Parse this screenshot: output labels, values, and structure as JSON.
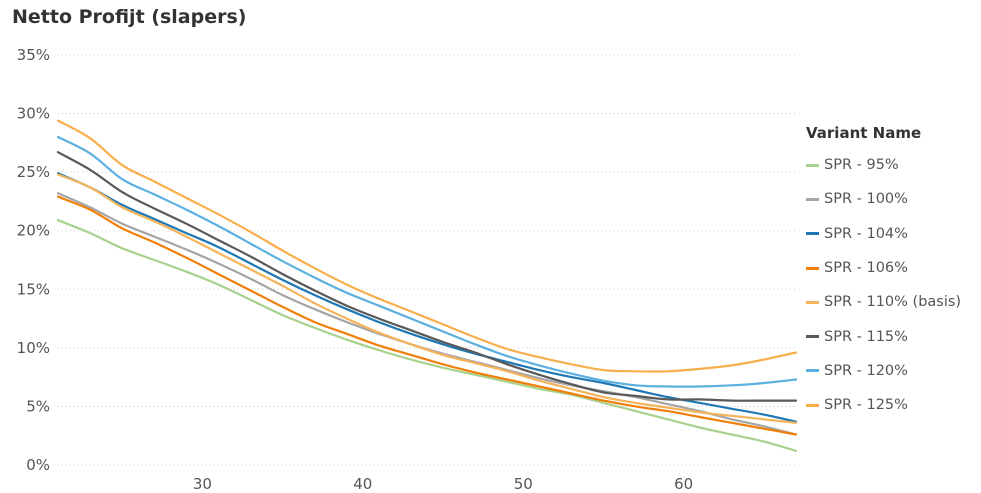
{
  "chart_data": {
    "type": "line",
    "title": "Netto Profijt (slapers)",
    "xlabel": "",
    "ylabel": "",
    "xlim": [
      21,
      67
    ],
    "ylim": [
      0,
      35
    ],
    "x_ticks": [
      30,
      40,
      50,
      60
    ],
    "y_ticks": [
      "0%",
      "5%",
      "10%",
      "15%",
      "20%",
      "25%",
      "30%",
      "35%"
    ],
    "grid": "horizontal-dotted",
    "legend": {
      "title": "Variant Name",
      "position": "right"
    },
    "x": [
      21,
      23,
      25,
      27,
      29,
      31,
      33,
      35,
      37,
      39,
      41,
      43,
      45,
      47,
      49,
      51,
      53,
      55,
      57,
      59,
      61,
      63,
      65,
      67
    ],
    "series": [
      {
        "name": "SPR - 95%",
        "color": "#a9d18e",
        "values": [
          20.9,
          19.8,
          18.5,
          17.5,
          16.5,
          15.4,
          14.1,
          12.8,
          11.7,
          10.7,
          9.8,
          9.0,
          8.3,
          7.7,
          7.1,
          6.5,
          6.0,
          5.3,
          4.6,
          3.9,
          3.2,
          2.6,
          2.0,
          1.2
        ]
      },
      {
        "name": "SPR - 100%",
        "color": "#a5a5a5",
        "values": [
          23.2,
          22.0,
          20.6,
          19.5,
          18.4,
          17.2,
          15.9,
          14.5,
          13.3,
          12.2,
          11.2,
          10.3,
          9.5,
          8.8,
          8.1,
          7.4,
          6.8,
          6.3,
          5.8,
          5.2,
          4.6,
          3.9,
          3.3,
          2.6
        ]
      },
      {
        "name": "SPR - 104%",
        "color": "#1f77b4",
        "values": [
          24.9,
          23.7,
          22.2,
          21.0,
          19.8,
          18.6,
          17.2,
          15.8,
          14.5,
          13.3,
          12.2,
          11.2,
          10.3,
          9.5,
          8.8,
          8.1,
          7.5,
          7.0,
          6.4,
          5.8,
          5.3,
          4.8,
          4.3,
          3.7
        ]
      },
      {
        "name": "SPR - 106%",
        "color": "#f07f09",
        "values": [
          22.9,
          21.8,
          20.2,
          19.0,
          17.7,
          16.3,
          14.9,
          13.5,
          12.2,
          11.2,
          10.2,
          9.4,
          8.6,
          7.9,
          7.3,
          6.7,
          6.1,
          5.5,
          5.0,
          4.6,
          4.1,
          3.6,
          3.1,
          2.6
        ]
      },
      {
        "name": "SPR - 110% (basis)",
        "color": "#f5b35a",
        "values": [
          24.8,
          23.7,
          22.0,
          20.8,
          19.5,
          18.1,
          16.7,
          15.3,
          13.8,
          12.5,
          11.3,
          10.3,
          9.4,
          8.7,
          8.0,
          7.2,
          6.5,
          5.8,
          5.3,
          4.9,
          4.5,
          4.2,
          3.9,
          3.6
        ]
      },
      {
        "name": "SPR - 115%",
        "color": "#595959",
        "values": [
          26.7,
          25.2,
          23.3,
          21.9,
          20.6,
          19.2,
          17.8,
          16.3,
          14.9,
          13.6,
          12.5,
          11.5,
          10.5,
          9.6,
          8.6,
          7.7,
          6.9,
          6.2,
          5.9,
          5.6,
          5.6,
          5.5,
          5.5,
          5.5
        ]
      },
      {
        "name": "SPR - 120%",
        "color": "#5bb0e0",
        "values": [
          28.0,
          26.6,
          24.4,
          23.1,
          21.8,
          20.4,
          18.9,
          17.4,
          16.0,
          14.7,
          13.6,
          12.5,
          11.4,
          10.3,
          9.3,
          8.5,
          7.8,
          7.2,
          6.8,
          6.7,
          6.7,
          6.8,
          7.0,
          7.3
        ]
      },
      {
        "name": "SPR - 125%",
        "color": "#f9ae4c",
        "values": [
          29.4,
          27.9,
          25.6,
          24.2,
          22.8,
          21.4,
          19.9,
          18.3,
          16.8,
          15.4,
          14.2,
          13.1,
          12.0,
          10.9,
          9.9,
          9.2,
          8.6,
          8.1,
          8.0,
          8.0,
          8.2,
          8.5,
          9.0,
          9.6
        ]
      }
    ]
  }
}
